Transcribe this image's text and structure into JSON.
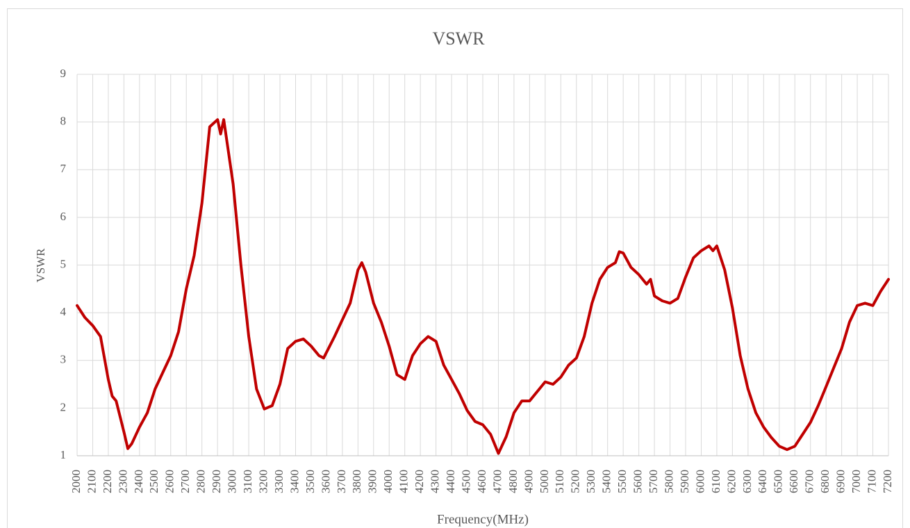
{
  "chart_data": {
    "type": "line",
    "title": "VSWR",
    "xlabel": "Frequency(MHz)",
    "ylabel": "VSWR",
    "x": [
      2000,
      2050,
      2100,
      2150,
      2200,
      2225,
      2250,
      2300,
      2325,
      2350,
      2400,
      2450,
      2500,
      2550,
      2600,
      2650,
      2700,
      2750,
      2800,
      2850,
      2900,
      2920,
      2940,
      3000,
      3050,
      3100,
      3150,
      3200,
      3250,
      3300,
      3350,
      3400,
      3450,
      3500,
      3550,
      3580,
      3650,
      3700,
      3750,
      3800,
      3825,
      3850,
      3900,
      3950,
      4000,
      4050,
      4100,
      4150,
      4200,
      4250,
      4300,
      4350,
      4400,
      4450,
      4500,
      4550,
      4600,
      4650,
      4700,
      4750,
      4800,
      4850,
      4900,
      4950,
      5000,
      5050,
      5100,
      5150,
      5200,
      5250,
      5300,
      5350,
      5400,
      5450,
      5475,
      5500,
      5550,
      5600,
      5650,
      5675,
      5700,
      5750,
      5800,
      5850,
      5900,
      5950,
      6000,
      6050,
      6075,
      6100,
      6150,
      6200,
      6250,
      6300,
      6350,
      6400,
      6450,
      6500,
      6550,
      6600,
      6650,
      6700,
      6750,
      6800,
      6850,
      6900,
      6950,
      7000,
      7050,
      7100,
      7150,
      7200
    ],
    "values": [
      4.15,
      3.9,
      3.73,
      3.5,
      2.6,
      2.25,
      2.15,
      1.5,
      1.15,
      1.25,
      1.6,
      1.9,
      2.4,
      2.75,
      3.1,
      3.6,
      4.5,
      5.2,
      6.3,
      7.9,
      8.05,
      7.75,
      8.05,
      6.7,
      5.0,
      3.5,
      2.4,
      1.98,
      2.05,
      2.5,
      3.25,
      3.4,
      3.45,
      3.3,
      3.1,
      3.05,
      3.5,
      3.85,
      4.2,
      4.9,
      5.05,
      4.85,
      4.2,
      3.8,
      3.3,
      2.7,
      2.6,
      3.1,
      3.35,
      3.5,
      3.4,
      2.9,
      2.6,
      2.3,
      1.95,
      1.72,
      1.65,
      1.45,
      1.05,
      1.4,
      1.9,
      2.15,
      2.15,
      2.35,
      2.55,
      2.5,
      2.65,
      2.9,
      3.05,
      3.5,
      4.2,
      4.7,
      4.95,
      5.05,
      5.28,
      5.25,
      4.95,
      4.8,
      4.6,
      4.7,
      4.35,
      4.25,
      4.2,
      4.3,
      4.75,
      5.15,
      5.3,
      5.4,
      5.3,
      5.4,
      4.9,
      4.1,
      3.1,
      2.4,
      1.9,
      1.6,
      1.38,
      1.2,
      1.13,
      1.2,
      1.45,
      1.7,
      2.05,
      2.45,
      2.85,
      3.25,
      3.8,
      4.15,
      4.2,
      4.15,
      4.45,
      4.7
    ],
    "color": "#c00000",
    "xlim": [
      2000,
      7200
    ],
    "xticks": [
      2000,
      2100,
      2200,
      2300,
      2400,
      2500,
      2600,
      2700,
      2800,
      2900,
      3000,
      3100,
      3200,
      3300,
      3400,
      3500,
      3600,
      3700,
      3800,
      3900,
      4000,
      4100,
      4200,
      4300,
      4400,
      4500,
      4600,
      4700,
      4800,
      4900,
      5000,
      5100,
      5200,
      5300,
      5400,
      5500,
      5600,
      5700,
      5800,
      5900,
      6000,
      6100,
      6200,
      6300,
      6400,
      6500,
      6600,
      6700,
      6800,
      6900,
      7000,
      7100,
      7200
    ],
    "ylim": [
      1,
      9
    ],
    "yticks": [
      1,
      2,
      3,
      4,
      5,
      6,
      7,
      8,
      9
    ],
    "grid": true
  }
}
